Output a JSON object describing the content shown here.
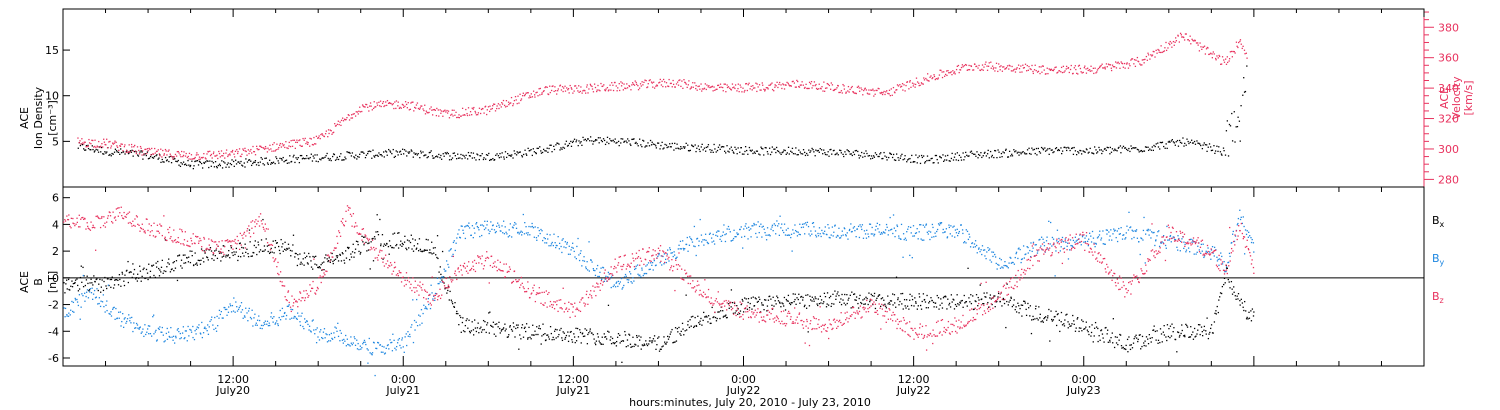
{
  "chart_data": [
    {
      "type": "scatter",
      "panel": "top",
      "ylabel_left": [
        "ACE",
        "Ion Density",
        "[cm⁻³]"
      ],
      "ylabel_right": [
        "ACE",
        "Velocity",
        "[km/s]"
      ],
      "ylim": [
        0,
        19.5
      ],
      "y_ticks": [
        5,
        10,
        15
      ],
      "y2lim": [
        275,
        392
      ],
      "y2_ticks": [
        280,
        300,
        320,
        340,
        360,
        380
      ],
      "grid": false,
      "colors": {
        "density": "#000000",
        "velocity": "#e8325e"
      },
      "series": [
        {
          "key": "density",
          "axis": "left",
          "x": [
            1.0,
            3.0,
            6.0,
            9.0,
            12.0,
            15.0,
            18.0,
            21.0,
            24.0,
            27.0,
            30.0,
            32.0,
            34.0,
            37.0,
            40.0,
            43.0,
            46.0,
            49.0,
            52.0,
            55.0,
            58.0,
            61.0,
            64.0,
            67.0,
            70.0,
            73.0,
            76.0,
            79.0,
            81.0,
            82.0,
            83.0,
            83.5
          ],
          "y": [
            4.5,
            4.0,
            3.5,
            2.5,
            2.6,
            3.0,
            3.3,
            3.6,
            3.8,
            3.5,
            3.4,
            3.7,
            4.2,
            5.2,
            5.0,
            4.5,
            4.3,
            4.0,
            4.0,
            3.8,
            3.5,
            3.0,
            3.6,
            3.8,
            4.1,
            4.0,
            4.3,
            5.0,
            4.3,
            3.8,
            5.5,
            13.0
          ]
        },
        {
          "key": "velocity",
          "axis": "right",
          "x": [
            1.0,
            3.0,
            6.0,
            9.0,
            12.0,
            15.0,
            18.0,
            21.0,
            24.0,
            27.0,
            30.0,
            32.0,
            34.0,
            37.0,
            40.0,
            43.0,
            46.0,
            49.0,
            52.0,
            55.0,
            58.0,
            61.0,
            64.0,
            67.0,
            70.0,
            73.0,
            76.0,
            79.0,
            81.0,
            82.0,
            83.0,
            83.5
          ],
          "y": [
            305,
            304,
            298,
            296,
            297,
            302,
            306,
            328,
            330,
            323,
            326,
            333,
            339,
            340,
            342,
            344,
            340,
            341,
            343,
            340,
            337,
            347,
            355,
            354,
            352,
            353,
            358,
            375,
            362,
            357,
            372,
            362
          ]
        }
      ]
    },
    {
      "type": "scatter",
      "panel": "bottom",
      "ylabel_left": [
        "ACE",
        "B",
        "[nT]"
      ],
      "ylim": [
        -6.6,
        6.8
      ],
      "y_ticks": [
        -6,
        -4,
        -2,
        0,
        2,
        4,
        6
      ],
      "zero_line": true,
      "legend": "right",
      "x_tick_labels": [
        {
          "x": 12,
          "line1": "12:00",
          "line2": "July20"
        },
        {
          "x": 24,
          "line1": "0:00",
          "line2": "July21"
        },
        {
          "x": 36,
          "line1": "12:00",
          "line2": "July21"
        },
        {
          "x": 48,
          "line1": "0:00",
          "line2": "July22"
        },
        {
          "x": 60,
          "line1": "12:00",
          "line2": "July22"
        },
        {
          "x": 72,
          "line1": "0:00",
          "line2": "July23"
        }
      ],
      "xlim": [
        0,
        96
      ],
      "xlabel": "hours:minutes, July 20, 2010 - July 23, 2010",
      "colors": {
        "bx": "#000000",
        "by": "#1f87e0",
        "bz": "#e8325e"
      },
      "series": [
        {
          "key": "bx",
          "name_main": "B",
          "name_sub": "x",
          "x": [
            0,
            3,
            6,
            9,
            12,
            15,
            18,
            20,
            22,
            24,
            26,
            28,
            30,
            33,
            36,
            39,
            42,
            45,
            48,
            51,
            54,
            57,
            60,
            63,
            66,
            69,
            72,
            75,
            78,
            81,
            82,
            83,
            84
          ],
          "y": [
            -0.5,
            -0.3,
            0.5,
            1.5,
            2.0,
            2.5,
            1.0,
            1.8,
            3.0,
            2.8,
            2.3,
            -3.5,
            -3.8,
            -4.0,
            -4.2,
            -4.5,
            -4.9,
            -3.0,
            -2.0,
            -1.8,
            -1.5,
            -1.7,
            -1.7,
            -1.8,
            -1.6,
            -2.8,
            -3.5,
            -5.0,
            -4.0,
            -4.0,
            0.5,
            -2.0,
            -3.0
          ]
        },
        {
          "key": "by",
          "name_main": "B",
          "name_sub": "y",
          "x": [
            0,
            2,
            4,
            6,
            8,
            10,
            12,
            14,
            16,
            18,
            20,
            22,
            24,
            26,
            28,
            30,
            33,
            36,
            39,
            42,
            45,
            48,
            51,
            54,
            57,
            60,
            63,
            66,
            69,
            72,
            75,
            78,
            81,
            82,
            83,
            84
          ],
          "y": [
            -2.5,
            -1.0,
            -3.0,
            -4.0,
            -4.3,
            -3.8,
            -2.0,
            -3.5,
            -2.5,
            -4.0,
            -4.5,
            -5.2,
            -5.0,
            -1.5,
            3.5,
            3.8,
            3.6,
            2.0,
            -0.5,
            1.5,
            3.0,
            3.5,
            3.8,
            3.5,
            3.6,
            3.4,
            3.7,
            1.0,
            2.5,
            2.8,
            3.5,
            2.8,
            2.0,
            1.0,
            5.0,
            2.0
          ]
        },
        {
          "key": "bz",
          "name_main": "B",
          "name_sub": "z",
          "x": [
            0,
            2,
            4,
            6,
            8,
            10,
            12,
            14,
            16,
            18,
            20,
            22,
            24,
            26,
            28,
            30,
            33,
            36,
            39,
            42,
            45,
            48,
            51,
            54,
            57,
            60,
            63,
            66,
            69,
            72,
            75,
            78,
            81,
            82,
            83,
            84
          ],
          "y": [
            4.5,
            4.0,
            4.8,
            3.8,
            3.2,
            2.5,
            2.3,
            4.5,
            -2.0,
            -0.5,
            5.0,
            2.0,
            0.0,
            -1.5,
            0.5,
            1.5,
            -1.0,
            -2.5,
            1.0,
            2.0,
            -1.0,
            -2.5,
            -3.0,
            -3.5,
            -2.0,
            -4.0,
            -3.5,
            -1.5,
            2.0,
            3.0,
            -1.0,
            3.5,
            2.0,
            0.5,
            4.0,
            0.8
          ]
        }
      ]
    }
  ]
}
